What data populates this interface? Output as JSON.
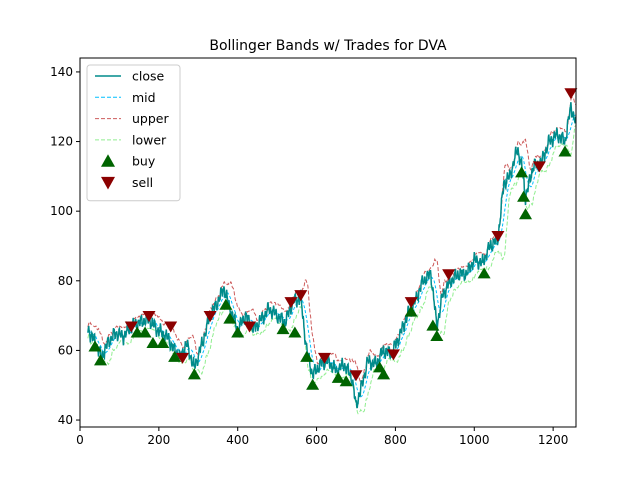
{
  "chart_data": {
    "type": "line",
    "title": "Bollinger Bands w/ Trades for DVA",
    "xlabel": "",
    "ylabel": "",
    "xlim": [
      0,
      1258
    ],
    "ylim": [
      38,
      144
    ],
    "xticks": [
      0,
      200,
      400,
      600,
      800,
      1000,
      1200
    ],
    "yticks": [
      40,
      60,
      80,
      100,
      120,
      140
    ],
    "grid": false,
    "legend_position": "upper-left",
    "colors": {
      "close": "#008b8b",
      "mid": "#00bfff",
      "upper": "#cd5c5c",
      "lower": "#90ee90",
      "buy": "#006400",
      "sell": "#8b0000"
    },
    "legend": [
      {
        "key": "close",
        "label": "close",
        "kind": "solid"
      },
      {
        "key": "mid",
        "label": "mid",
        "kind": "dashed"
      },
      {
        "key": "upper",
        "label": "upper",
        "kind": "dashed"
      },
      {
        "key": "lower",
        "label": "lower",
        "kind": "dashed"
      },
      {
        "key": "buy",
        "label": "buy",
        "kind": "up-triangle"
      },
      {
        "key": "sell",
        "label": "sell",
        "kind": "down-triangle"
      }
    ],
    "close_anchors": [
      [
        20,
        66
      ],
      [
        40,
        62
      ],
      [
        55,
        58
      ],
      [
        70,
        62
      ],
      [
        90,
        65
      ],
      [
        110,
        64
      ],
      [
        130,
        67
      ],
      [
        150,
        68
      ],
      [
        175,
        69
      ],
      [
        195,
        66
      ],
      [
        220,
        64
      ],
      [
        240,
        60
      ],
      [
        255,
        58
      ],
      [
        270,
        62
      ],
      [
        290,
        55
      ],
      [
        310,
        62
      ],
      [
        330,
        70
      ],
      [
        350,
        74
      ],
      [
        365,
        78
      ],
      [
        380,
        72
      ],
      [
        400,
        66
      ],
      [
        420,
        70
      ],
      [
        440,
        66
      ],
      [
        460,
        69
      ],
      [
        480,
        72
      ],
      [
        500,
        70
      ],
      [
        520,
        68
      ],
      [
        540,
        74
      ],
      [
        560,
        75
      ],
      [
        575,
        60
      ],
      [
        590,
        53
      ],
      [
        610,
        56
      ],
      [
        630,
        57
      ],
      [
        650,
        54
      ],
      [
        670,
        56
      ],
      [
        690,
        52
      ],
      [
        700,
        44
      ],
      [
        715,
        50
      ],
      [
        730,
        57
      ],
      [
        750,
        56
      ],
      [
        770,
        60
      ],
      [
        790,
        59
      ],
      [
        810,
        64
      ],
      [
        830,
        70
      ],
      [
        850,
        74
      ],
      [
        870,
        80
      ],
      [
        890,
        82
      ],
      [
        905,
        67
      ],
      [
        920,
        76
      ],
      [
        940,
        80
      ],
      [
        960,
        82
      ],
      [
        980,
        82
      ],
      [
        1000,
        86
      ],
      [
        1020,
        85
      ],
      [
        1040,
        90
      ],
      [
        1060,
        92
      ],
      [
        1075,
        108
      ],
      [
        1090,
        110
      ],
      [
        1110,
        118
      ],
      [
        1120,
        113
      ],
      [
        1130,
        104
      ],
      [
        1150,
        113
      ],
      [
        1170,
        114
      ],
      [
        1190,
        120
      ],
      [
        1210,
        122
      ],
      [
        1230,
        120
      ],
      [
        1245,
        130
      ],
      [
        1258,
        125
      ]
    ],
    "trades": [
      {
        "type": "buy",
        "x": 38,
        "y": 61
      },
      {
        "type": "buy",
        "x": 52,
        "y": 57
      },
      {
        "type": "buy",
        "x": 145,
        "y": 65
      },
      {
        "type": "buy",
        "x": 165,
        "y": 65
      },
      {
        "type": "buy",
        "x": 185,
        "y": 62
      },
      {
        "type": "buy",
        "x": 210,
        "y": 62
      },
      {
        "type": "buy",
        "x": 240,
        "y": 58
      },
      {
        "type": "buy",
        "x": 290,
        "y": 53
      },
      {
        "type": "buy",
        "x": 370,
        "y": 73
      },
      {
        "type": "buy",
        "x": 380,
        "y": 69
      },
      {
        "type": "buy",
        "x": 400,
        "y": 65
      },
      {
        "type": "buy",
        "x": 515,
        "y": 66
      },
      {
        "type": "buy",
        "x": 545,
        "y": 65
      },
      {
        "type": "buy",
        "x": 575,
        "y": 58
      },
      {
        "type": "buy",
        "x": 590,
        "y": 50
      },
      {
        "type": "buy",
        "x": 655,
        "y": 52
      },
      {
        "type": "buy",
        "x": 675,
        "y": 51
      },
      {
        "type": "buy",
        "x": 760,
        "y": 55
      },
      {
        "type": "buy",
        "x": 770,
        "y": 53
      },
      {
        "type": "buy",
        "x": 840,
        "y": 71
      },
      {
        "type": "buy",
        "x": 895,
        "y": 67
      },
      {
        "type": "buy",
        "x": 905,
        "y": 64
      },
      {
        "type": "buy",
        "x": 1025,
        "y": 82
      },
      {
        "type": "buy",
        "x": 1120,
        "y": 111
      },
      {
        "type": "buy",
        "x": 1125,
        "y": 104
      },
      {
        "type": "buy",
        "x": 1130,
        "y": 99
      },
      {
        "type": "buy",
        "x": 1230,
        "y": 117
      },
      {
        "type": "sell",
        "x": 130,
        "y": 67
      },
      {
        "type": "sell",
        "x": 175,
        "y": 70
      },
      {
        "type": "sell",
        "x": 230,
        "y": 67
      },
      {
        "type": "sell",
        "x": 260,
        "y": 58
      },
      {
        "type": "sell",
        "x": 330,
        "y": 70
      },
      {
        "type": "sell",
        "x": 430,
        "y": 67
      },
      {
        "type": "sell",
        "x": 535,
        "y": 74
      },
      {
        "type": "sell",
        "x": 560,
        "y": 76
      },
      {
        "type": "sell",
        "x": 620,
        "y": 58
      },
      {
        "type": "sell",
        "x": 700,
        "y": 53
      },
      {
        "type": "sell",
        "x": 795,
        "y": 59
      },
      {
        "type": "sell",
        "x": 840,
        "y": 74
      },
      {
        "type": "sell",
        "x": 935,
        "y": 82
      },
      {
        "type": "sell",
        "x": 1060,
        "y": 93
      },
      {
        "type": "sell",
        "x": 1165,
        "y": 113
      },
      {
        "type": "sell",
        "x": 1245,
        "y": 134
      }
    ]
  }
}
